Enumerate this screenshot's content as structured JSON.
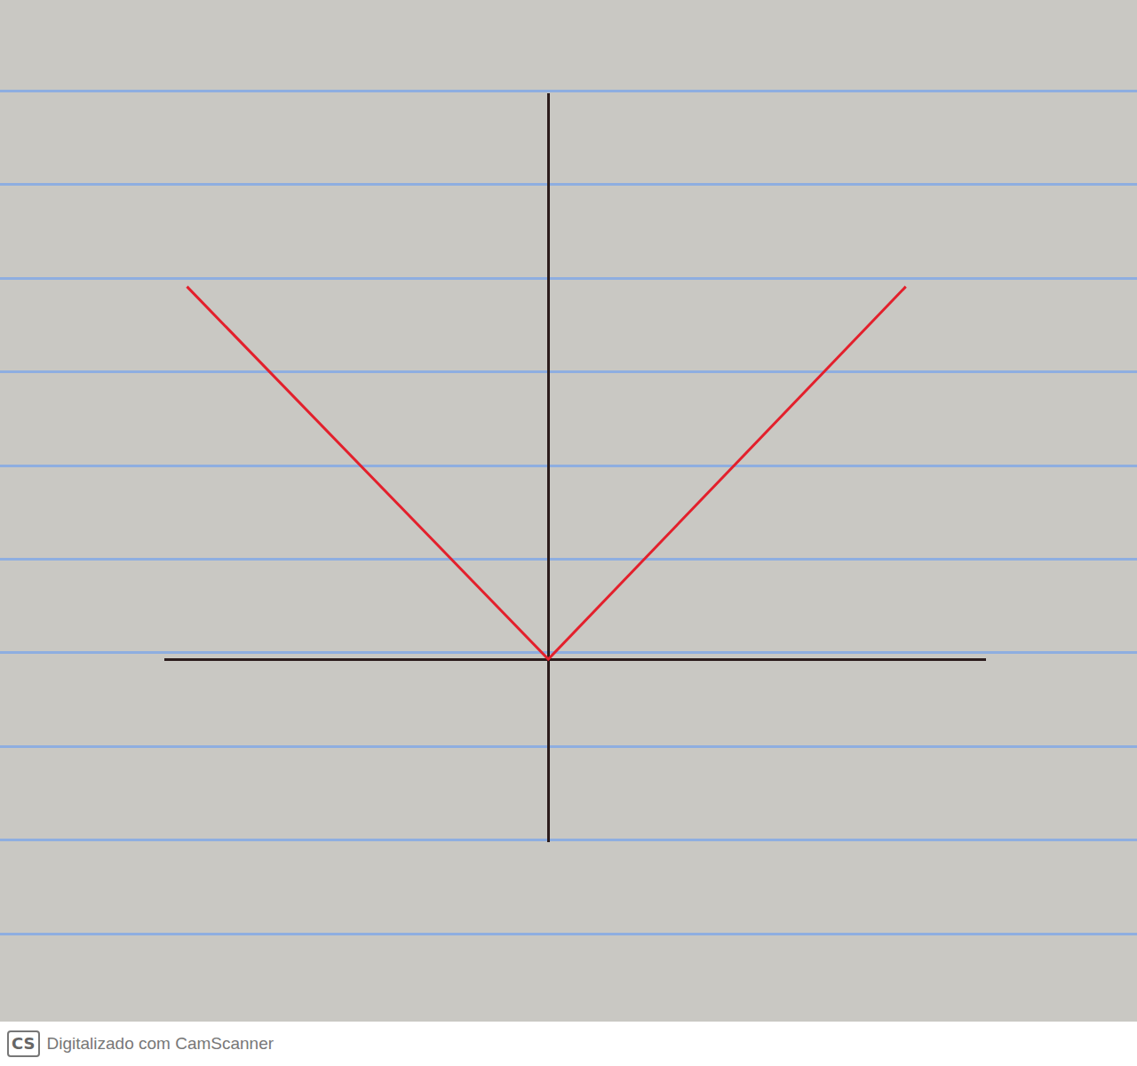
{
  "chart_data": {
    "type": "line",
    "x": [
      -3.83,
      0,
      3.79
    ],
    "values": [
      3.95,
      0,
      3.95
    ],
    "color": "#e3202c",
    "xlim": [
      -4.07,
      4.64
    ],
    "ylim": [
      -1.94,
      6.0
    ],
    "grid": false,
    "tick_labels": false
  },
  "watermark": {
    "badge": "CS",
    "text": "Digitalizado com CamScanner"
  }
}
